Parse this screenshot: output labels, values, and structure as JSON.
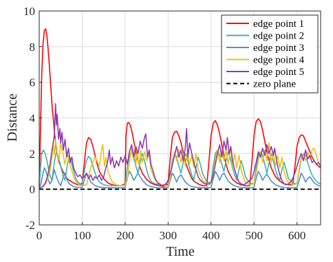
{
  "chart_data": {
    "type": "line",
    "title": "",
    "xlabel": "Time",
    "ylabel": "Distance",
    "xlim": [
      0,
      655
    ],
    "ylim": [
      -2,
      10
    ],
    "xticks": [
      0,
      100,
      200,
      300,
      400,
      500,
      600
    ],
    "yticks": [
      -2,
      0,
      2,
      4,
      6,
      8,
      10
    ],
    "grid": true,
    "legend_position": "top-right",
    "series": [
      {
        "name": "edge point 1",
        "color": "#ff0000",
        "x": [
          0,
          3,
          6,
          9,
          12,
          15,
          18,
          21,
          24,
          27,
          30,
          35,
          40,
          45,
          50,
          55,
          60,
          65,
          70,
          80,
          90,
          100,
          105,
          110,
          115,
          120,
          125,
          130,
          135,
          140,
          150,
          160,
          170,
          180,
          190,
          200,
          202,
          205,
          208,
          212,
          216,
          220,
          225,
          230,
          235,
          240,
          250,
          260,
          270,
          280,
          290,
          300,
          305,
          310,
          315,
          320,
          325,
          330,
          335,
          340,
          345,
          350,
          355,
          360,
          370,
          380,
          390,
          395,
          400,
          405,
          410,
          415,
          420,
          425,
          430,
          435,
          440,
          450,
          460,
          470,
          480,
          490,
          495,
          500,
          505,
          510,
          515,
          520,
          525,
          530,
          535,
          540,
          550,
          560,
          570,
          580,
          590,
          595,
          600,
          605,
          610,
          615,
          620,
          625,
          630,
          635,
          640,
          645,
          650,
          655
        ],
        "y": [
          0.2,
          3.5,
          6.5,
          8.2,
          8.9,
          9.0,
          8.6,
          7.8,
          6.8,
          5.7,
          4.7,
          3.3,
          2.2,
          1.6,
          1.3,
          1.0,
          0.8,
          0.6,
          0.5,
          0.35,
          0.25,
          0.3,
          1.5,
          2.6,
          2.9,
          2.8,
          2.4,
          1.9,
          1.4,
          1.0,
          0.6,
          0.35,
          0.25,
          0.2,
          0.2,
          0.3,
          3.0,
          3.7,
          3.75,
          3.6,
          3.2,
          2.7,
          2.1,
          1.6,
          1.2,
          0.9,
          0.55,
          0.35,
          0.25,
          0.2,
          0.15,
          0.3,
          1.8,
          2.9,
          3.2,
          3.25,
          3.0,
          2.6,
          2.1,
          1.6,
          1.2,
          0.9,
          0.6,
          0.45,
          0.3,
          0.2,
          0.2,
          1.5,
          3.0,
          3.7,
          3.85,
          3.6,
          3.1,
          2.5,
          1.9,
          1.4,
          1.0,
          0.55,
          0.35,
          0.25,
          0.2,
          0.2,
          1.5,
          3.0,
          3.8,
          3.95,
          3.8,
          3.3,
          2.7,
          2.1,
          1.6,
          1.2,
          0.7,
          0.45,
          0.3,
          0.25,
          0.25,
          1.2,
          2.4,
          2.9,
          3.05,
          3.0,
          2.7,
          2.4,
          2.1,
          1.8,
          1.6,
          1.4,
          1.3,
          1.2
        ]
      },
      {
        "name": "edge point 2",
        "color": "#3fb1a8",
        "x": [
          0,
          3,
          6,
          10,
          14,
          18,
          22,
          26,
          30,
          35,
          40,
          45,
          50,
          55,
          60,
          65,
          70,
          75,
          80,
          85,
          90,
          95,
          100,
          105,
          110,
          115,
          120,
          125,
          130,
          135,
          140,
          150,
          160,
          170,
          180,
          190,
          200,
          205,
          210,
          215,
          220,
          225,
          230,
          235,
          240,
          245,
          250,
          255,
          260,
          265,
          270,
          275,
          280,
          290,
          300,
          305,
          310,
          315,
          320,
          325,
          330,
          335,
          340,
          345,
          350,
          355,
          360,
          365,
          370,
          375,
          380,
          390,
          400,
          405,
          410,
          415,
          420,
          425,
          430,
          435,
          440,
          445,
          450,
          455,
          460,
          465,
          470,
          475,
          480,
          490,
          500,
          505,
          510,
          515,
          520,
          525,
          530,
          535,
          540,
          545,
          550,
          555,
          560,
          565,
          570,
          575,
          580,
          590,
          600,
          605,
          610,
          615,
          620,
          625,
          630,
          635,
          640,
          645,
          650,
          655
        ],
        "y": [
          0.1,
          1.2,
          2.0,
          2.2,
          2.0,
          1.6,
          1.1,
          0.7,
          0.5,
          1.5,
          2.1,
          1.8,
          1.3,
          0.8,
          0.5,
          1.3,
          1.9,
          1.5,
          1.0,
          0.6,
          0.4,
          0.3,
          0.35,
          1.0,
          1.6,
          1.85,
          1.7,
          1.3,
          0.9,
          0.6,
          0.4,
          0.25,
          0.2,
          0.2,
          0.2,
          0.2,
          0.25,
          1.2,
          1.9,
          2.1,
          1.8,
          1.3,
          0.9,
          1.5,
          2.0,
          1.6,
          1.1,
          0.7,
          0.45,
          0.35,
          0.3,
          0.3,
          0.25,
          0.2,
          0.2,
          0.8,
          1.6,
          2.0,
          1.8,
          1.3,
          0.9,
          1.5,
          2.0,
          1.7,
          1.2,
          0.8,
          0.5,
          1.2,
          1.8,
          1.4,
          0.9,
          0.4,
          0.35,
          1.3,
          2.0,
          2.2,
          1.9,
          1.4,
          1.0,
          1.6,
          2.1,
          1.7,
          1.2,
          0.8,
          0.5,
          1.1,
          1.6,
          1.2,
          0.7,
          0.35,
          0.3,
          1.2,
          1.9,
          2.1,
          1.9,
          1.4,
          0.9,
          1.5,
          2.0,
          1.6,
          1.1,
          0.7,
          0.5,
          1.1,
          1.5,
          1.1,
          0.6,
          0.35,
          0.3,
          1.0,
          1.7,
          2.0,
          1.9,
          1.5,
          1.1,
          0.8,
          0.6,
          0.45,
          0.35,
          0.3
        ]
      },
      {
        "name": "edge point 3",
        "color": "#4f8fd0",
        "x": [
          0,
          4,
          8,
          12,
          16,
          20,
          25,
          30,
          35,
          40,
          45,
          50,
          55,
          60,
          65,
          70,
          80,
          90,
          100,
          105,
          110,
          115,
          120,
          125,
          130,
          140,
          150,
          160,
          170,
          180,
          190,
          200,
          205,
          210,
          215,
          220,
          225,
          230,
          240,
          250,
          260,
          270,
          280,
          290,
          300,
          305,
          310,
          315,
          320,
          325,
          330,
          340,
          350,
          360,
          370,
          380,
          390,
          400,
          405,
          410,
          415,
          420,
          425,
          430,
          440,
          450,
          460,
          470,
          480,
          490,
          500,
          505,
          510,
          515,
          520,
          525,
          530,
          540,
          550,
          560,
          570,
          580,
          590,
          600,
          605,
          610,
          615,
          620,
          625,
          630,
          640,
          650,
          655
        ],
        "y": [
          0.05,
          0.3,
          0.8,
          1.2,
          1.0,
          0.6,
          0.3,
          0.5,
          1.1,
          0.7,
          0.4,
          0.2,
          0.6,
          0.9,
          0.5,
          0.3,
          0.15,
          0.1,
          0.1,
          0.5,
          0.9,
          0.7,
          0.4,
          0.3,
          0.2,
          0.12,
          0.1,
          0.08,
          0.08,
          0.08,
          0.08,
          0.1,
          0.6,
          1.0,
          0.8,
          0.5,
          0.7,
          0.9,
          0.5,
          0.25,
          0.15,
          0.1,
          0.08,
          0.08,
          0.1,
          0.5,
          0.9,
          0.7,
          0.4,
          0.7,
          0.8,
          0.4,
          0.2,
          0.12,
          0.1,
          0.08,
          0.08,
          0.1,
          0.6,
          1.0,
          0.8,
          0.5,
          0.8,
          0.9,
          0.45,
          0.25,
          0.15,
          0.1,
          0.08,
          0.08,
          0.1,
          0.6,
          1.0,
          0.8,
          0.5,
          0.7,
          0.85,
          0.45,
          0.25,
          0.15,
          0.1,
          0.08,
          0.08,
          0.1,
          0.5,
          0.9,
          0.7,
          0.4,
          0.6,
          0.7,
          0.35,
          0.2,
          0.2
        ]
      },
      {
        "name": "edge point 4",
        "color": "#ecc01a",
        "x": [
          0,
          5,
          10,
          15,
          20,
          25,
          30,
          32,
          35,
          38,
          42,
          46,
          50,
          55,
          60,
          65,
          70,
          75,
          80,
          85,
          90,
          95,
          100,
          110,
          120,
          130,
          140,
          145,
          148,
          152,
          156,
          160,
          170,
          180,
          190,
          200,
          205,
          210,
          215,
          220,
          222,
          225,
          228,
          232,
          236,
          240,
          245,
          250,
          255,
          260,
          270,
          280,
          290,
          300,
          305,
          310,
          315,
          320,
          325,
          330,
          335,
          340,
          345,
          350,
          355,
          360,
          365,
          370,
          380,
          390,
          400,
          405,
          410,
          415,
          420,
          425,
          430,
          435,
          440,
          445,
          450,
          455,
          460,
          465,
          470,
          475,
          480,
          490,
          500,
          505,
          510,
          515,
          520,
          525,
          530,
          535,
          540,
          545,
          550,
          555,
          560,
          565,
          570,
          575,
          580,
          590,
          600,
          605,
          610,
          615,
          620,
          625,
          630,
          635,
          640,
          645,
          650,
          655
        ],
        "y": [
          0.05,
          0.1,
          0.15,
          0.3,
          0.6,
          1.0,
          1.8,
          2.6,
          1.9,
          2.8,
          2.0,
          1.6,
          2.6,
          2.0,
          1.4,
          2.1,
          1.5,
          1.1,
          0.7,
          0.45,
          0.3,
          0.2,
          0.2,
          0.25,
          1.2,
          1.8,
          1.3,
          2.2,
          2.5,
          1.3,
          1.8,
          1.0,
          0.4,
          0.25,
          0.2,
          0.2,
          0.5,
          1.5,
          2.3,
          1.6,
          2.4,
          1.4,
          2.1,
          1.3,
          2.2,
          1.5,
          2.1,
          1.6,
          2.0,
          1.1,
          0.5,
          0.3,
          0.2,
          0.2,
          0.6,
          1.4,
          2.1,
          1.6,
          2.2,
          1.5,
          2.0,
          1.3,
          2.1,
          1.4,
          1.9,
          1.2,
          2.0,
          1.1,
          0.5,
          0.3,
          0.25,
          0.9,
          1.7,
          2.2,
          1.5,
          2.3,
          1.6,
          2.2,
          1.4,
          2.3,
          1.3,
          2.0,
          1.2,
          1.9,
          1.1,
          0.7,
          0.4,
          0.25,
          0.3,
          0.9,
          1.6,
          2.1,
          1.5,
          2.2,
          1.6,
          2.6,
          1.5,
          2.1,
          1.3,
          1.9,
          1.2,
          1.8,
          1.0,
          0.6,
          0.4,
          0.25,
          0.3,
          1.1,
          1.8,
          2.0,
          1.6,
          2.1,
          1.7,
          2.2,
          2.3,
          1.9,
          1.5,
          1.3
        ]
      },
      {
        "name": "edge point 5",
        "color": "#8c3cb0",
        "x": [
          0,
          5,
          10,
          15,
          20,
          25,
          30,
          35,
          38,
          40,
          42,
          45,
          48,
          50,
          53,
          56,
          60,
          64,
          68,
          72,
          76,
          80,
          85,
          90,
          95,
          100,
          105,
          110,
          115,
          120,
          125,
          130,
          135,
          140,
          145,
          150,
          155,
          160,
          163,
          166,
          170,
          175,
          180,
          185,
          190,
          195,
          200,
          205,
          210,
          215,
          220,
          225,
          230,
          235,
          240,
          245,
          248,
          252,
          256,
          260,
          265,
          270,
          275,
          280,
          285,
          290,
          295,
          300,
          305,
          310,
          315,
          320,
          325,
          330,
          335,
          340,
          343,
          346,
          350,
          355,
          360,
          365,
          370,
          375,
          380,
          385,
          390,
          395,
          400,
          405,
          410,
          415,
          420,
          425,
          430,
          435,
          438,
          442,
          446,
          450,
          455,
          460,
          465,
          470,
          475,
          480,
          485,
          490,
          495,
          500,
          505,
          510,
          515,
          520,
          525,
          530,
          535,
          540,
          545,
          548,
          552,
          556,
          560,
          565,
          570,
          575,
          580,
          585,
          590,
          595,
          600,
          605,
          610,
          615,
          620,
          625,
          630,
          635,
          640,
          645,
          650,
          655
        ],
        "y": [
          0.05,
          0.1,
          0.2,
          0.4,
          0.8,
          1.4,
          2.2,
          3.0,
          4.8,
          3.6,
          4.2,
          2.8,
          3.4,
          2.6,
          3.2,
          2.2,
          2.8,
          1.8,
          2.3,
          1.5,
          1.8,
          1.2,
          0.9,
          0.7,
          0.8,
          0.6,
          0.7,
          0.9,
          0.6,
          0.8,
          0.5,
          0.7,
          0.6,
          0.8,
          0.5,
          0.7,
          1.2,
          1.6,
          2.2,
          1.4,
          1.8,
          1.2,
          1.6,
          1.3,
          1.8,
          1.5,
          1.9,
          1.4,
          2.1,
          2.5,
          1.8,
          2.4,
          2.0,
          2.7,
          2.3,
          2.9,
          3.1,
          1.8,
          2.2,
          1.4,
          1.0,
          0.6,
          0.4,
          0.3,
          0.2,
          0.25,
          0.3,
          0.5,
          0.9,
          1.4,
          1.9,
          2.4,
          1.8,
          2.2,
          1.6,
          2.3,
          3.4,
          1.8,
          2.6,
          2.0,
          1.5,
          1.1,
          0.7,
          0.5,
          0.4,
          0.3,
          0.3,
          0.3,
          0.4,
          0.8,
          1.4,
          2.0,
          2.5,
          1.8,
          2.7,
          2.2,
          2.9,
          2.0,
          2.4,
          1.6,
          1.1,
          0.7,
          0.4,
          0.3,
          0.25,
          0.3,
          0.4,
          0.5,
          0.6,
          1.0,
          1.5,
          2.1,
          1.8,
          2.3,
          1.9,
          2.5,
          2.0,
          2.4,
          1.9,
          2.3,
          1.7,
          1.2,
          0.8,
          0.5,
          0.3,
          0.25,
          0.3,
          0.4,
          0.6,
          0.9,
          1.3,
          1.7,
          2.0,
          1.6,
          2.2,
          1.7,
          1.9,
          1.5,
          1.6,
          1.4,
          1.5,
          1.3
        ]
      },
      {
        "name": "zero plane",
        "color": "#000000",
        "dashed": true,
        "x": [
          0,
          655
        ],
        "y": [
          0,
          0
        ]
      }
    ]
  }
}
